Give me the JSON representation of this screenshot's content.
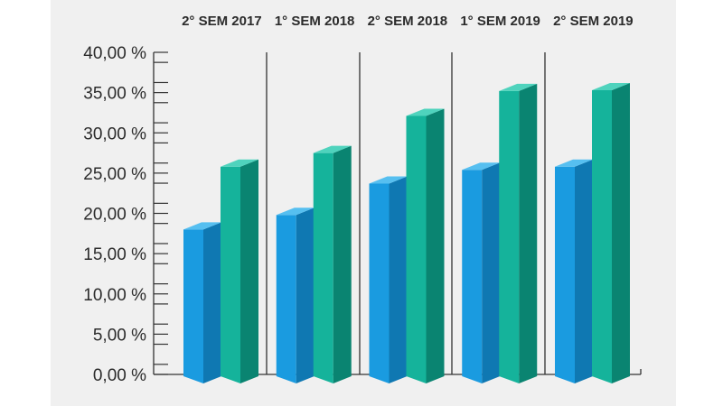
{
  "chart_data": {
    "type": "bar",
    "title": "",
    "xlabel": "",
    "ylabel": "",
    "categories": [
      "2° SEM 2017",
      "1° SEM 2018",
      "2° SEM 2018",
      "1° SEM 2019",
      "2° SEM 2019"
    ],
    "series": [
      {
        "values": [
          18.0,
          19.8,
          23.7,
          25.4,
          25.8
        ]
      },
      {
        "values": [
          25.8,
          27.5,
          32.1,
          35.2,
          35.3
        ]
      }
    ],
    "ylim": [
      0,
      40
    ],
    "yticks": [
      "0,00 %",
      "5,00 %",
      "10,00 %",
      "15,00 %",
      "20,00 %",
      "25,00 %",
      "30,00 %",
      "35,00 %",
      "40,00 %"
    ],
    "grid": false,
    "legend": "none",
    "category_label_position": "top",
    "colors": {
      "series1_front": "#1a9be0",
      "series1_side": "#0f78b2",
      "series1_top": "#56bff0",
      "series2_front": "#15b39b",
      "series2_side": "#0a8471",
      "series2_top": "#4fd3bd",
      "axis": "#333333",
      "text": "#2b2b2b",
      "background": "#f0f0f0"
    }
  }
}
